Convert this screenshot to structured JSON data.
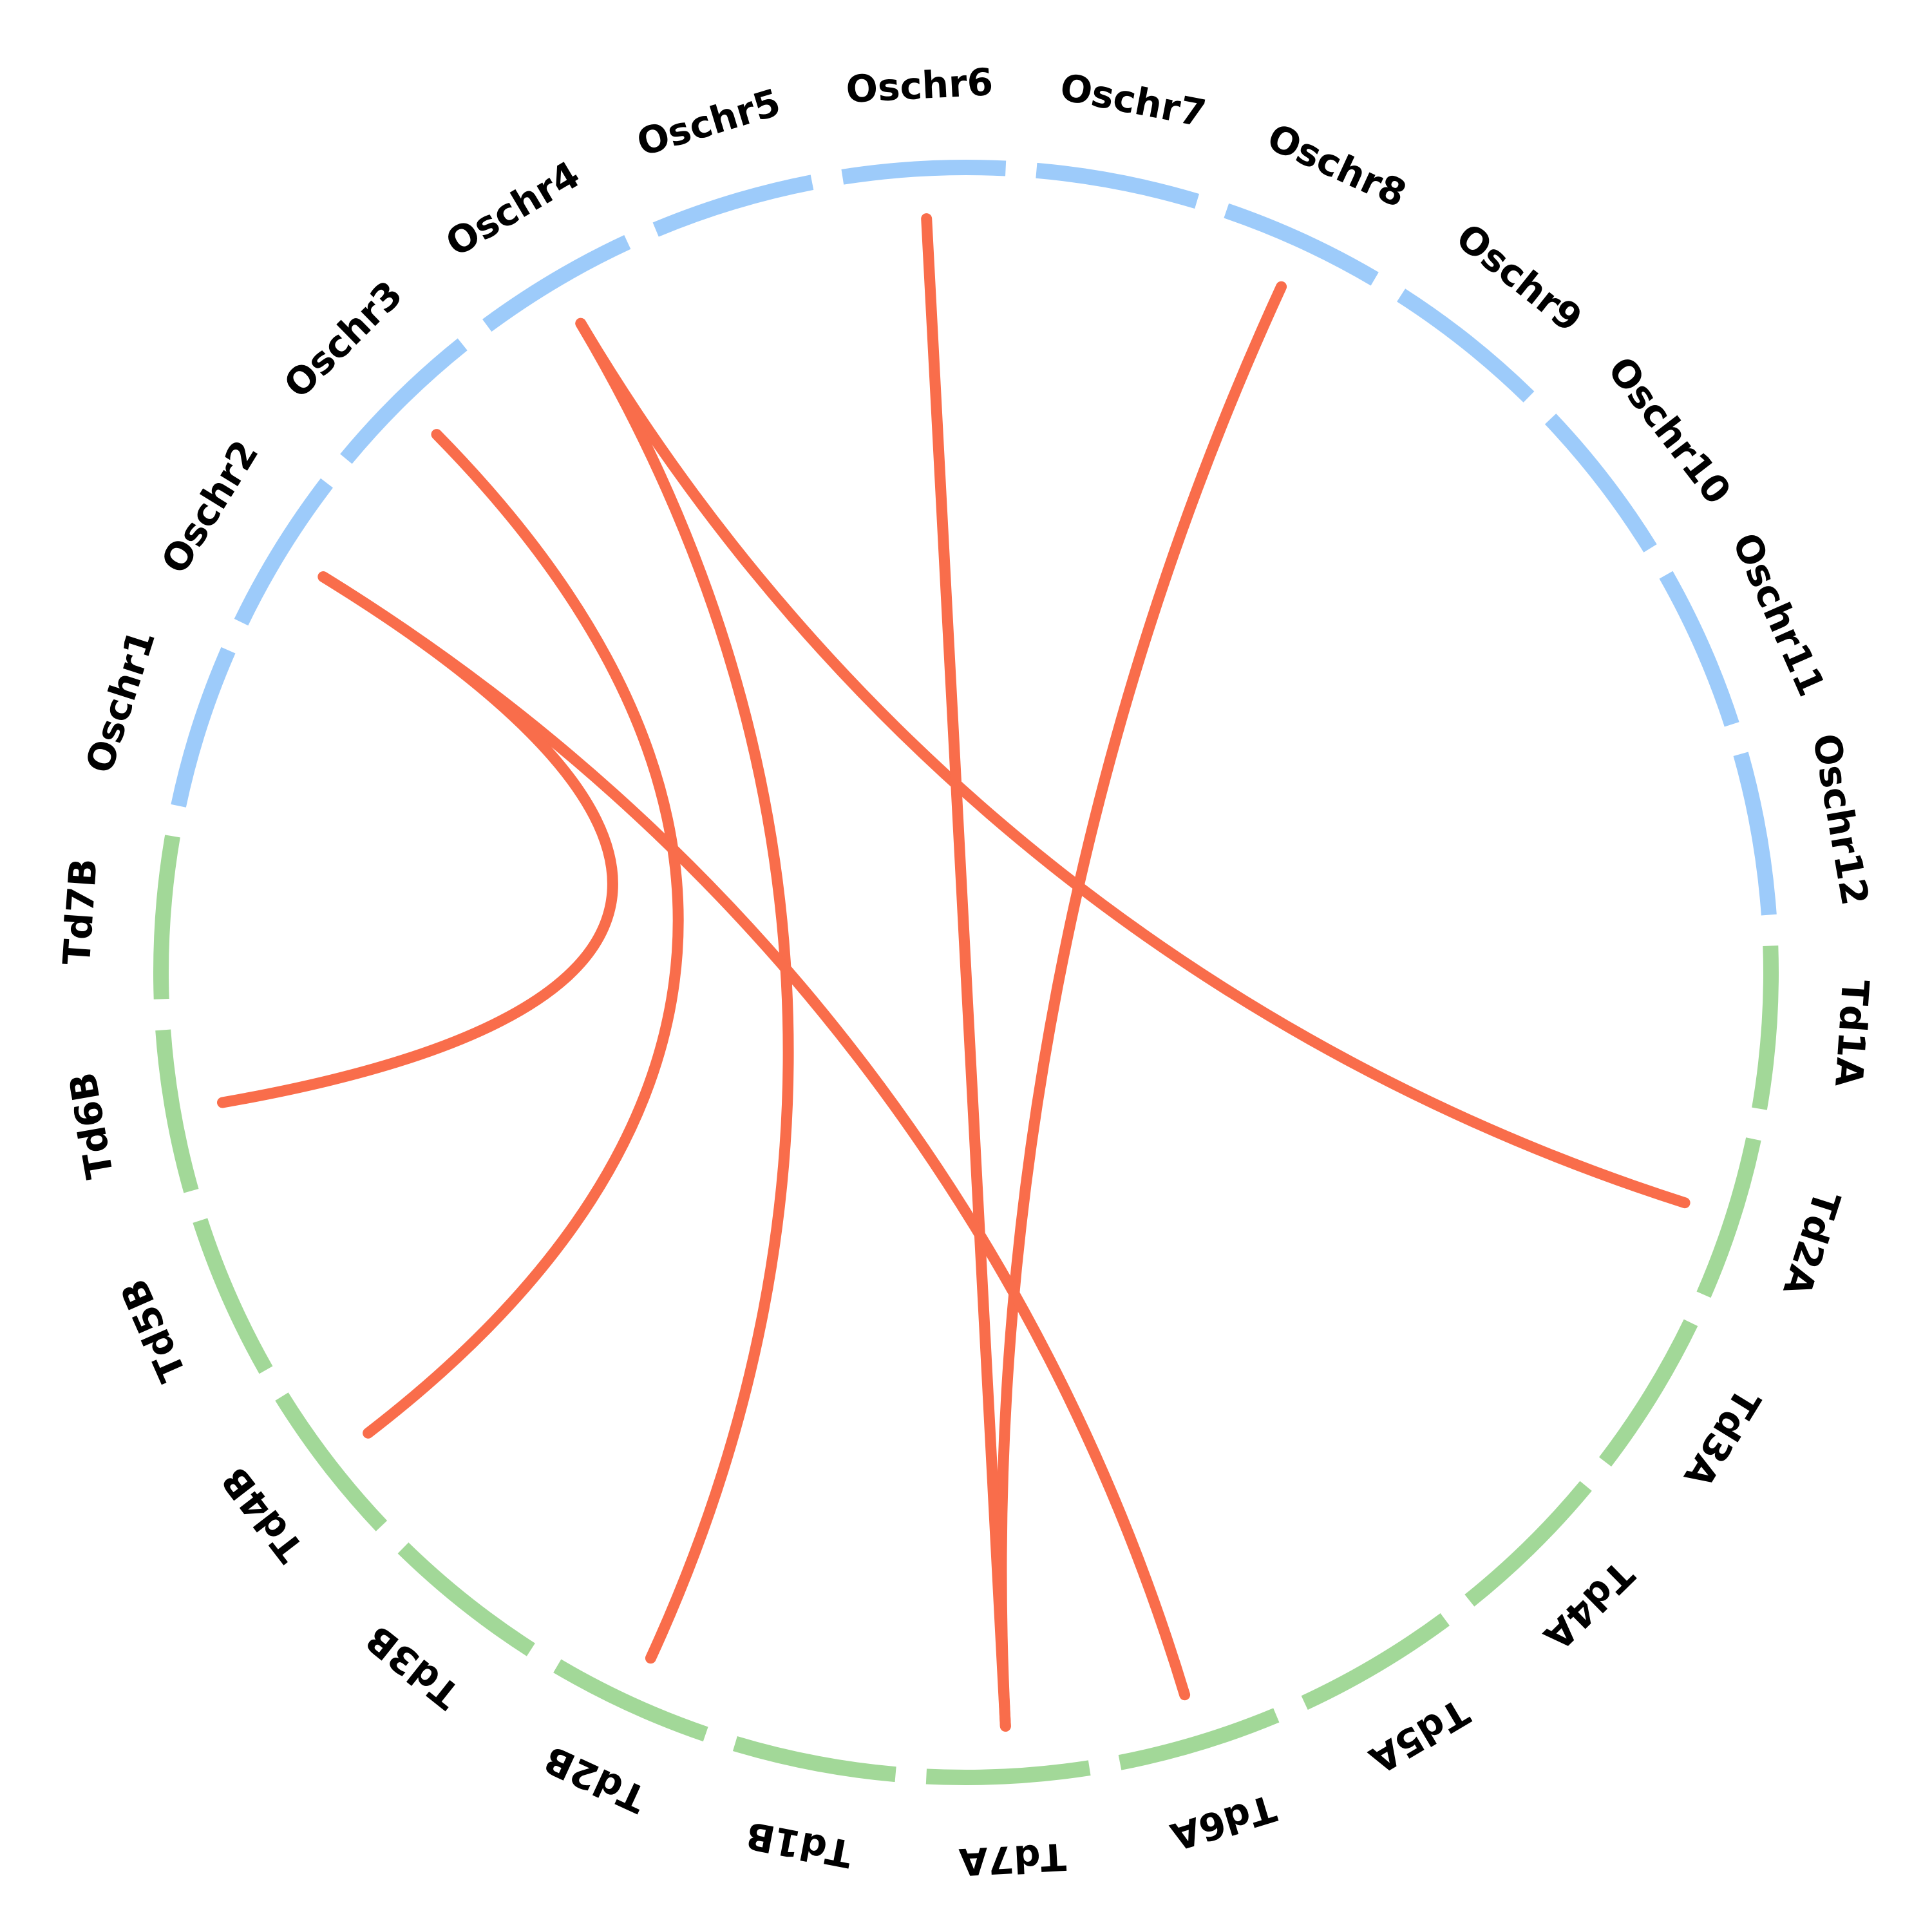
{
  "colors": {
    "oryza_segment": "#9dcbfa",
    "triticum_segment": "#a2d898",
    "link": "#f96d4b"
  },
  "chromosomes": [
    {
      "id": "Td1A",
      "label": "Td1A",
      "group": "triticum"
    },
    {
      "id": "Td2A",
      "label": "Td2A",
      "group": "triticum"
    },
    {
      "id": "Td3A",
      "label": "Td3A",
      "group": "triticum"
    },
    {
      "id": "Td4A",
      "label": "Td4A",
      "group": "triticum"
    },
    {
      "id": "Td5A",
      "label": "Td5A",
      "group": "triticum"
    },
    {
      "id": "Td6A",
      "label": "Td6A",
      "group": "triticum"
    },
    {
      "id": "Td7A",
      "label": "Td7A",
      "group": "triticum"
    },
    {
      "id": "Td1B",
      "label": "Td1B",
      "group": "triticum"
    },
    {
      "id": "Td2B",
      "label": "Td2B",
      "group": "triticum"
    },
    {
      "id": "Td3B",
      "label": "Td3B",
      "group": "triticum"
    },
    {
      "id": "Td4B",
      "label": "Td4B",
      "group": "triticum"
    },
    {
      "id": "Td5B",
      "label": "Td5B",
      "group": "triticum"
    },
    {
      "id": "Td6B",
      "label": "Td6B",
      "group": "triticum"
    },
    {
      "id": "Td7B",
      "label": "Td7B",
      "group": "triticum"
    },
    {
      "id": "Oschr1",
      "label": "Oschr1",
      "group": "oryza"
    },
    {
      "id": "Oschr2",
      "label": "Oschr2",
      "group": "oryza"
    },
    {
      "id": "Oschr3",
      "label": "Oschr3",
      "group": "oryza"
    },
    {
      "id": "Oschr4",
      "label": "Oschr4",
      "group": "oryza"
    },
    {
      "id": "Oschr5",
      "label": "Oschr5",
      "group": "oryza"
    },
    {
      "id": "Oschr6",
      "label": "Oschr6",
      "group": "oryza"
    },
    {
      "id": "Oschr7",
      "label": "Oschr7",
      "group": "oryza"
    },
    {
      "id": "Oschr8",
      "label": "Oschr8",
      "group": "oryza"
    },
    {
      "id": "Oschr9",
      "label": "Oschr9",
      "group": "oryza"
    },
    {
      "id": "Oschr10",
      "label": "Oschr10",
      "group": "oryza"
    },
    {
      "id": "Oschr11",
      "label": "Oschr11",
      "group": "oryza"
    },
    {
      "id": "Oschr12",
      "label": "Oschr12",
      "group": "oryza"
    }
  ],
  "links": [
    {
      "from": "Oschr4",
      "to": "Td2A"
    },
    {
      "from": "Oschr4",
      "to": "Td2B"
    },
    {
      "from": "Oschr8",
      "to": "Td7A"
    },
    {
      "from": "Oschr6",
      "to": "Td7A"
    },
    {
      "from": "Oschr2",
      "to": "Td6A"
    },
    {
      "from": "Oschr3",
      "to": "Td4B"
    },
    {
      "from": "Oschr2",
      "to": "Td6B"
    }
  ]
}
